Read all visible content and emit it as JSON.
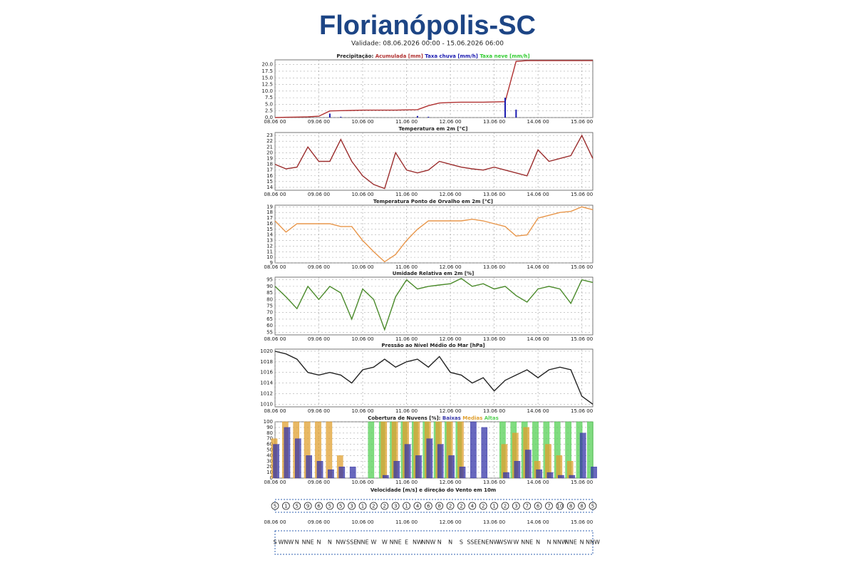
{
  "header": {
    "title": "Florianópolis-SC",
    "subtitle": "Validade: 08.06.2026 00:00 - 15.06.2026 06:00"
  },
  "time_axis": {
    "x": [
      0,
      6,
      12,
      18,
      24,
      30,
      36,
      42,
      48,
      54,
      60,
      66,
      72,
      78,
      84,
      90,
      96,
      102,
      108,
      114,
      120,
      126,
      132,
      138,
      144,
      150,
      156,
      162,
      168,
      174
    ],
    "xlim": [
      0,
      174
    ],
    "xticks": [
      {
        "value": 0,
        "label": "08.06 00"
      },
      {
        "value": 24,
        "label": "09.06 00"
      },
      {
        "value": 48,
        "label": "10.06 00"
      },
      {
        "value": 72,
        "label": "11.06 00"
      },
      {
        "value": 96,
        "label": "12.06 00"
      },
      {
        "value": 120,
        "label": "13.06 00"
      },
      {
        "value": 144,
        "label": "14.06 00"
      },
      {
        "value": 168,
        "label": "15.06 00"
      }
    ]
  },
  "chart_data": [
    {
      "type": "combo",
      "title": "Precipitação:",
      "ylim": [
        0,
        21.8
      ],
      "yticks": [
        {
          "value": 0,
          "label": "0.0"
        },
        2.5,
        {
          "value": 5,
          "label": "5.0"
        },
        7.5,
        {
          "value": 10,
          "label": "10.0"
        },
        12.5,
        {
          "value": 15,
          "label": "15.0"
        },
        17.5,
        {
          "value": 20,
          "label": "20.0"
        }
      ],
      "grid": true,
      "series": [
        {
          "name": "Acumulada [mm]",
          "type": "line",
          "color": "#b03030",
          "values": [
            0,
            0.1,
            0.2,
            0.3,
            0.5,
            2.5,
            2.6,
            2.7,
            2.8,
            2.8,
            2.8,
            2.8,
            2.9,
            3.0,
            4.5,
            5.5,
            5.7,
            5.8,
            5.8,
            5.8,
            5.9,
            6.0,
            21.2,
            21.5,
            21.5,
            21.5,
            21.5,
            21.5,
            21.5,
            21.5
          ]
        },
        {
          "name": "Taxa chuva [mm/h]",
          "type": "bar",
          "color": "#1a1ab0",
          "values": [
            0,
            0,
            0,
            0,
            0,
            1.5,
            0.3,
            0,
            0,
            0,
            0,
            0,
            0,
            0.6,
            0.3,
            0,
            0,
            0,
            0,
            0,
            0,
            7.5,
            3.0,
            0,
            0,
            0,
            0,
            0,
            0,
            0
          ]
        },
        {
          "name": "Taxa neve [mm/h]",
          "type": "bar",
          "color": "#33cc33",
          "values": [
            0,
            0,
            0,
            0,
            0,
            0,
            0,
            0,
            0,
            0,
            0,
            0,
            0,
            0,
            0,
            0,
            0,
            0,
            0,
            0,
            0,
            0,
            0,
            0,
            0,
            0,
            0,
            0,
            0,
            0
          ]
        }
      ]
    },
    {
      "type": "line",
      "title": "Temperatura em 2m [°C]",
      "color": "#9b2d2d",
      "ylim": [
        13.5,
        23.5
      ],
      "yticks": [
        14,
        15,
        16,
        17,
        18,
        19,
        20,
        21,
        22,
        23
      ],
      "grid": true,
      "values": [
        18,
        17.2,
        17.5,
        21,
        18.5,
        18.5,
        22.3,
        18.5,
        16,
        14.5,
        13.8,
        20,
        17,
        16.5,
        17,
        18.5,
        18,
        17.5,
        17.2,
        17,
        17.5,
        17,
        16.5,
        16,
        20.5,
        18.5,
        19,
        19.5,
        23,
        19
      ]
    },
    {
      "type": "line",
      "title": "Temperatura Ponto de Orvalho em 2m [°C]",
      "color": "#e8964a",
      "ylim": [
        9,
        19.3
      ],
      "yticks": [
        9,
        10,
        11,
        12,
        13,
        14,
        15,
        16,
        17,
        18,
        19
      ],
      "grid": true,
      "values": [
        16.5,
        14.5,
        16,
        16,
        16,
        16,
        15.5,
        15.5,
        13,
        11,
        9.2,
        10.5,
        13,
        15,
        16.5,
        16.5,
        16.5,
        16.5,
        16.8,
        16.5,
        16,
        15.5,
        13.8,
        14,
        17,
        17.5,
        18,
        18.2,
        19,
        18.5
      ]
    },
    {
      "type": "line",
      "title": "Umidade Relativa em 2m [%]",
      "color": "#4a8a2a",
      "ylim": [
        53,
        97
      ],
      "yticks": [
        55,
        60,
        65,
        70,
        75,
        80,
        85,
        90,
        95
      ],
      "grid": true,
      "values": [
        90,
        82,
        73,
        90,
        80,
        90,
        85,
        65,
        88,
        80,
        57,
        82,
        95,
        88,
        90,
        91,
        92,
        96,
        90,
        92,
        88,
        90,
        83,
        78,
        88,
        90,
        88,
        77,
        95,
        93
      ]
    },
    {
      "type": "line",
      "title": "Pressão ao Nível Médio do Mar [hPa]",
      "color": "#222222",
      "ylim": [
        1009.5,
        1020.4
      ],
      "yticks": [
        1010,
        1012,
        1014,
        1016,
        1018,
        1020
      ],
      "grid": true,
      "values": [
        1020,
        1019.5,
        1018.5,
        1016,
        1015.5,
        1016,
        1015.5,
        1014,
        1016.5,
        1017,
        1018.5,
        1017,
        1018,
        1018.5,
        1017,
        1019,
        1016,
        1015.5,
        1014,
        1015,
        1012.5,
        1014.5,
        1015.5,
        1016.5,
        1015,
        1016.5,
        1017,
        1016.5,
        1011.5,
        1010
      ]
    },
    {
      "type": "bar",
      "title": "Cobertura de Nuvens [%]:",
      "ylim": [
        0,
        100
      ],
      "yticks": [
        0,
        10,
        20,
        30,
        40,
        50,
        60,
        70,
        80,
        90,
        100
      ],
      "grid": true,
      "series": [
        {
          "name": "Baixas",
          "color": "#3535a8",
          "values": [
            60,
            90,
            70,
            40,
            30,
            15,
            20,
            20,
            0,
            0,
            5,
            30,
            60,
            40,
            70,
            60,
            40,
            20,
            100,
            90,
            0,
            10,
            30,
            50,
            15,
            10,
            5,
            5,
            80,
            20
          ]
        },
        {
          "name": "Medias",
          "color": "#e0a030",
          "values": [
            70,
            100,
            100,
            100,
            100,
            100,
            40,
            0,
            0,
            0,
            100,
            100,
            100,
            100,
            100,
            100,
            100,
            100,
            0,
            0,
            0,
            60,
            80,
            90,
            30,
            60,
            40,
            30,
            0,
            0
          ]
        },
        {
          "name": "Altas",
          "color": "#55d055",
          "values": [
            0,
            0,
            0,
            0,
            0,
            0,
            0,
            0,
            0,
            100,
            100,
            100,
            100,
            100,
            100,
            100,
            100,
            100,
            0,
            0,
            0,
            100,
            100,
            100,
            100,
            100,
            100,
            100,
            100,
            100
          ]
        }
      ]
    },
    {
      "type": "wind",
      "title": "Velocidade [m/s] e direção do Vento em 10m",
      "values": [
        5,
        1,
        5,
        9,
        6,
        5,
        5,
        3,
        1,
        2,
        2,
        3,
        1,
        4,
        6,
        8,
        2,
        2,
        4,
        2,
        1,
        2,
        3,
        7,
        6,
        7,
        10,
        8,
        8,
        5
      ],
      "directions": [
        "S",
        "WNW",
        "N",
        "NNE",
        "N",
        "N",
        "NW",
        "SSE",
        "NNE",
        "W",
        "W",
        "NNE",
        "E",
        "NW",
        "NNW",
        "N",
        "N",
        "S",
        "SSE",
        "ENE",
        "NW",
        "WSW",
        "W",
        "NNE",
        "N",
        "N",
        "NNW",
        "NNE",
        "N",
        "NNW"
      ]
    }
  ]
}
